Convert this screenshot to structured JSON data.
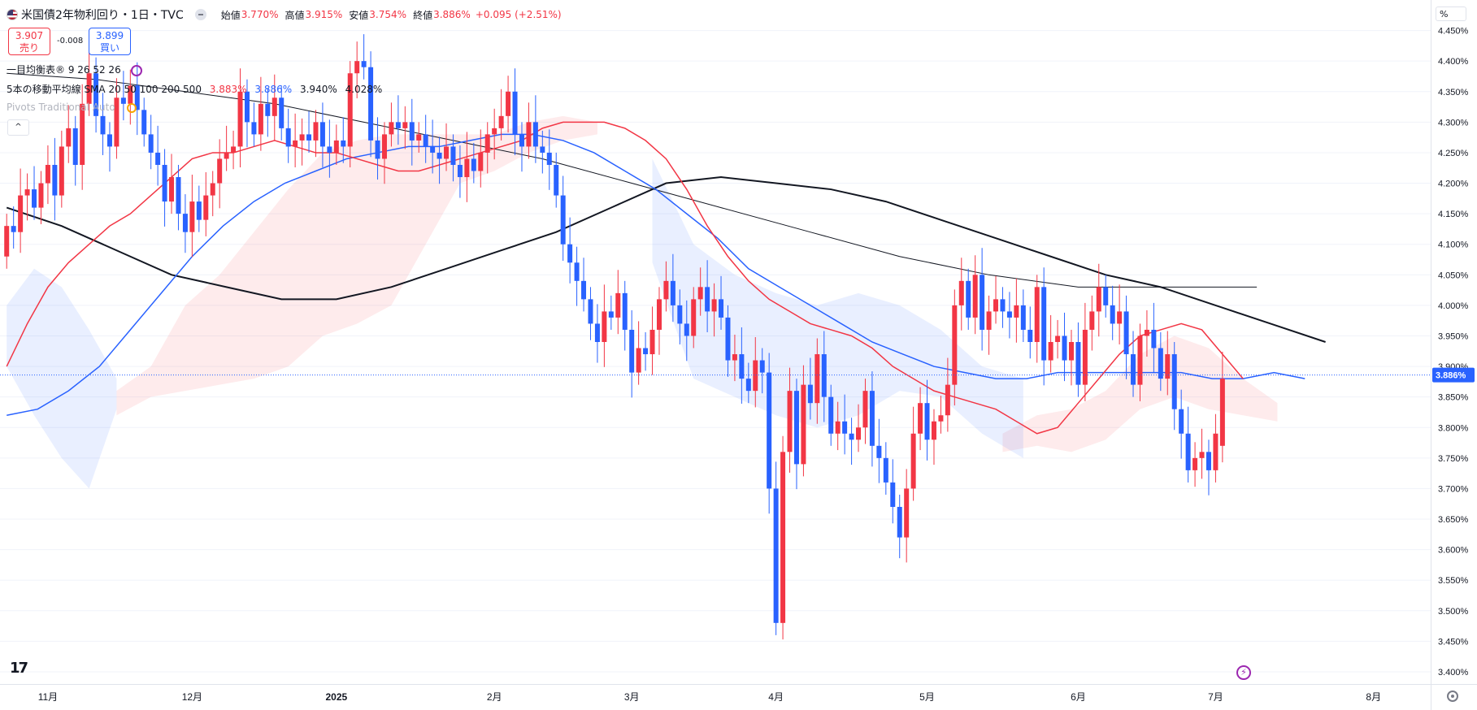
{
  "header": {
    "symbol_title": "米国債2年物利回り・1日・TVC",
    "ohlc": [
      {
        "label": "始値",
        "value": "3.770%"
      },
      {
        "label": "高値",
        "value": "3.915%"
      },
      {
        "label": "安値",
        "value": "3.754%"
      },
      {
        "label": "終値",
        "value": "3.886%"
      }
    ],
    "change": "+0.095 (+2.51%)"
  },
  "trade": {
    "sell_price": "3.907",
    "sell_label": "売り",
    "spread": "-0.008",
    "buy_price": "3.899",
    "buy_label": "買い"
  },
  "indicators": {
    "ichimoku": "一目均衡表® 9 26 52 26",
    "ma_label": "5本の移動平均線 SMA 20 50 100 200 500",
    "ma_values": [
      {
        "value": "3.883%",
        "color": "#f23645"
      },
      {
        "value": "3.886%",
        "color": "#2962ff"
      },
      {
        "value": "3.940%",
        "color": "#131722"
      },
      {
        "value": "4.028%",
        "color": "#131722"
      }
    ],
    "pivots": "Pivots Traditional Auto",
    "collapse": "^"
  },
  "price_axis": {
    "unit_button": "%",
    "current_label": "3.886%",
    "current_color": "#2962ff"
  },
  "tv_logo": "17",
  "colors": {
    "up": "#f23645",
    "down": "#2962ff",
    "sma20": "#f23645",
    "sma50": "#2962ff",
    "sma_black": "#131722",
    "cloud_red": "rgba(242,54,69,0.10)",
    "cloud_blue": "rgba(41,98,255,0.10)"
  },
  "chart_data": {
    "type": "candlestick",
    "title": "米国債2年物利回り・1日・TVC",
    "y_range": [
      3.38,
      4.5
    ],
    "y_ticks": [
      "4.450%",
      "4.400%",
      "4.350%",
      "4.300%",
      "4.250%",
      "4.200%",
      "4.150%",
      "4.100%",
      "4.050%",
      "4.000%",
      "3.950%",
      "3.900%",
      "3.850%",
      "3.800%",
      "3.750%",
      "3.700%",
      "3.650%",
      "3.600%",
      "3.550%",
      "3.500%",
      "3.450%",
      "3.400%"
    ],
    "y_tick_values": [
      4.45,
      4.4,
      4.35,
      4.3,
      4.25,
      4.2,
      4.15,
      4.1,
      4.05,
      4.0,
      3.95,
      3.9,
      3.85,
      3.8,
      3.75,
      3.7,
      3.65,
      3.6,
      3.55,
      3.5,
      3.45,
      3.4
    ],
    "x_ticks": [
      {
        "label": "11月",
        "bar": 6
      },
      {
        "label": "12月",
        "bar": 27
      },
      {
        "label": "2025",
        "bar": 48
      },
      {
        "label": "2月",
        "bar": 71
      },
      {
        "label": "3月",
        "bar": 91
      },
      {
        "label": "4月",
        "bar": 112
      },
      {
        "label": "5月",
        "bar": 134
      },
      {
        "label": "6月",
        "bar": 156
      },
      {
        "label": "7月",
        "bar": 176
      },
      {
        "label": "8月",
        "bar": 199
      }
    ],
    "current_value": 3.886,
    "closes": [
      4.13,
      4.12,
      4.18,
      4.19,
      4.16,
      4.2,
      4.23,
      4.18,
      4.26,
      4.29,
      4.23,
      4.33,
      4.38,
      4.31,
      4.28,
      4.26,
      4.34,
      4.33,
      4.36,
      4.32,
      4.28,
      4.25,
      4.23,
      4.17,
      4.21,
      4.15,
      4.12,
      4.17,
      4.14,
      4.18,
      4.2,
      4.24,
      4.25,
      4.26,
      4.35,
      4.3,
      4.28,
      4.33,
      4.31,
      4.34,
      4.29,
      4.26,
      4.27,
      4.28,
      4.27,
      4.3,
      4.26,
      4.25,
      4.27,
      4.26,
      4.38,
      4.4,
      4.39,
      4.27,
      4.24,
      4.28,
      4.3,
      4.29,
      4.3,
      4.27,
      4.28,
      4.26,
      4.25,
      4.24,
      4.26,
      4.23,
      4.21,
      4.24,
      4.22,
      4.25,
      4.28,
      4.29,
      4.31,
      4.35,
      4.28,
      4.26,
      4.3,
      4.26,
      4.25,
      4.23,
      4.18,
      4.1,
      4.07,
      4.04,
      4.01,
      3.97,
      3.94,
      3.99,
      3.98,
      4.02,
      3.96,
      3.89,
      3.93,
      3.92,
      3.96,
      4.01,
      4.04,
      4.0,
      3.97,
      3.95,
      4.01,
      4.03,
      3.99,
      4.01,
      3.98,
      3.91,
      3.92,
      3.88,
      3.86,
      3.91,
      3.89,
      3.7,
      3.48,
      3.76,
      3.86,
      3.74,
      3.87,
      3.84,
      3.92,
      3.85,
      3.79,
      3.81,
      3.79,
      3.78,
      3.8,
      3.86,
      3.77,
      3.75,
      3.71,
      3.67,
      3.62,
      3.7,
      3.79,
      3.84,
      3.78,
      3.81,
      3.82,
      3.87,
      4.0,
      4.04,
      3.98,
      4.05,
      3.96,
      3.99,
      4.01,
      3.99,
      3.98,
      4.0,
      3.96,
      3.94,
      4.03,
      3.91,
      3.94,
      3.95,
      3.91,
      3.94,
      3.87,
      3.96,
      3.99,
      4.03,
      4.0,
      3.97,
      3.99,
      3.92,
      3.87,
      3.95,
      3.96,
      3.93,
      3.88,
      3.92,
      3.83,
      3.79,
      3.73,
      3.75,
      3.76,
      3.73,
      3.79,
      3.88
    ],
    "opens": [
      4.08,
      4.13,
      4.12,
      4.18,
      4.19,
      4.16,
      4.2,
      4.23,
      4.18,
      4.26,
      4.29,
      4.23,
      4.33,
      4.38,
      4.31,
      4.28,
      4.26,
      4.34,
      4.33,
      4.36,
      4.32,
      4.28,
      4.25,
      4.23,
      4.17,
      4.21,
      4.15,
      4.12,
      4.17,
      4.14,
      4.18,
      4.2,
      4.24,
      4.25,
      4.26,
      4.35,
      4.3,
      4.28,
      4.33,
      4.31,
      4.34,
      4.29,
      4.26,
      4.27,
      4.28,
      4.27,
      4.3,
      4.26,
      4.25,
      4.27,
      4.26,
      4.38,
      4.4,
      4.39,
      4.27,
      4.24,
      4.28,
      4.3,
      4.29,
      4.3,
      4.27,
      4.28,
      4.26,
      4.25,
      4.24,
      4.26,
      4.23,
      4.21,
      4.24,
      4.22,
      4.25,
      4.28,
      4.29,
      4.31,
      4.35,
      4.28,
      4.26,
      4.3,
      4.26,
      4.25,
      4.23,
      4.18,
      4.1,
      4.07,
      4.04,
      4.01,
      3.97,
      3.94,
      3.99,
      3.98,
      4.02,
      3.96,
      3.89,
      3.93,
      3.92,
      3.96,
      4.01,
      4.04,
      4.0,
      3.97,
      3.95,
      4.01,
      4.03,
      3.99,
      4.01,
      3.98,
      3.91,
      3.92,
      3.88,
      3.86,
      3.91,
      3.89,
      3.7,
      3.48,
      3.76,
      3.86,
      3.74,
      3.87,
      3.84,
      3.92,
      3.85,
      3.79,
      3.81,
      3.79,
      3.78,
      3.8,
      3.86,
      3.77,
      3.75,
      3.71,
      3.67,
      3.62,
      3.7,
      3.79,
      3.84,
      3.78,
      3.81,
      3.82,
      3.87,
      4.0,
      4.04,
      3.98,
      4.05,
      3.96,
      3.99,
      4.01,
      3.99,
      3.98,
      4.0,
      3.96,
      3.94,
      4.03,
      3.91,
      3.94,
      3.95,
      3.91,
      3.94,
      3.87,
      3.96,
      3.99,
      4.03,
      4.0,
      3.97,
      3.99,
      3.92,
      3.87,
      3.95,
      3.96,
      3.93,
      3.88,
      3.92,
      3.83,
      3.79,
      3.73,
      3.75,
      3.76,
      3.73,
      3.77
    ],
    "sma20": [
      3.9,
      3.97,
      4.03,
      4.07,
      4.1,
      4.13,
      4.15,
      4.18,
      4.21,
      4.24,
      4.25,
      4.25,
      4.26,
      4.27,
      4.26,
      4.25,
      4.25,
      4.24,
      4.23,
      4.22,
      4.22,
      4.23,
      4.24,
      4.25,
      4.26,
      4.27,
      4.29,
      4.3,
      4.3,
      4.3,
      4.29,
      4.27,
      4.24,
      4.19,
      4.13,
      4.08,
      4.04,
      4.01,
      3.99,
      3.97,
      3.96,
      3.95,
      3.93,
      3.9,
      3.88,
      3.86,
      3.85,
      3.84,
      3.83,
      3.81,
      3.79,
      3.8,
      3.84,
      3.88,
      3.92,
      3.95,
      3.96,
      3.97,
      3.96,
      3.92,
      3.88
    ],
    "sma50": [
      3.82,
      3.83,
      3.86,
      3.9,
      3.96,
      4.02,
      4.08,
      4.13,
      4.17,
      4.2,
      4.22,
      4.24,
      4.25,
      4.26,
      4.26,
      4.27,
      4.28,
      4.28,
      4.27,
      4.25,
      4.22,
      4.19,
      4.15,
      4.11,
      4.06,
      4.03,
      4.0,
      3.97,
      3.94,
      3.92,
      3.9,
      3.89,
      3.88,
      3.88,
      3.89,
      3.89,
      3.89,
      3.89,
      3.89,
      3.88,
      3.88,
      3.89,
      3.88
    ],
    "sma100": [
      4.16,
      4.13,
      4.09,
      4.05,
      4.03,
      4.01,
      4.01,
      4.03,
      4.06,
      4.09,
      4.12,
      4.16,
      4.2,
      4.21,
      4.2,
      4.19,
      4.17,
      4.14,
      4.11,
      4.08,
      4.05,
      4.03,
      4.0,
      3.97,
      3.94
    ],
    "sma200": [
      4.38,
      4.37,
      4.35,
      4.33,
      4.3,
      4.27,
      4.24,
      4.2,
      4.16,
      4.12,
      4.08,
      4.05,
      4.03,
      4.03,
      4.03
    ],
    "cloud_red": [
      [
        3.82,
        3.86
      ],
      [
        3.85,
        3.9
      ],
      [
        3.86,
        4.0
      ],
      [
        3.87,
        4.05
      ],
      [
        3.88,
        4.12
      ],
      [
        3.9,
        4.19
      ],
      [
        3.95,
        4.25
      ],
      [
        3.97,
        4.27
      ],
      [
        4.0,
        4.28
      ],
      [
        4.1,
        4.28
      ],
      [
        4.2,
        4.28
      ],
      [
        4.22,
        4.28
      ],
      [
        4.25,
        4.3
      ],
      [
        4.27,
        4.31
      ],
      [
        4.28,
        4.3
      ],
      [
        3.76,
        3.79
      ],
      [
        3.77,
        3.82
      ],
      [
        3.76,
        3.83
      ],
      [
        3.78,
        3.86
      ],
      [
        3.83,
        3.92
      ],
      [
        3.85,
        3.95
      ],
      [
        3.83,
        3.93
      ],
      [
        3.82,
        3.88
      ],
      [
        3.81,
        3.84
      ]
    ],
    "cloud_blue": [
      [
        3.9,
        4.0
      ],
      [
        3.82,
        4.06
      ],
      [
        3.75,
        4.03
      ],
      [
        3.7,
        3.96
      ],
      [
        3.83,
        3.88
      ],
      [
        4.07,
        4.24
      ],
      [
        3.88,
        4.1
      ],
      [
        3.85,
        4.05
      ],
      [
        3.82,
        4.02
      ],
      [
        3.8,
        4.0
      ],
      [
        3.82,
        4.02
      ],
      [
        3.86,
        4.0
      ],
      [
        3.85,
        3.96
      ],
      [
        3.79,
        3.9
      ],
      [
        3.75,
        3.88
      ]
    ]
  }
}
